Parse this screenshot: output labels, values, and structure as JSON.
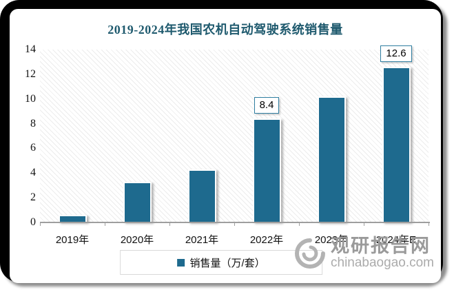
{
  "chart_data": {
    "type": "bar",
    "title": "2019-2024年我国农机自动驾驶系统销售量",
    "categories": [
      "2019年",
      "2020年",
      "2021年",
      "2022年",
      "2023年",
      "2024年E"
    ],
    "values": [
      0.6,
      3.3,
      4.3,
      8.4,
      10.2,
      12.6
    ],
    "bar_labels": [
      "",
      "",
      "",
      "8.4",
      "",
      "12.6"
    ],
    "yticks": [
      0,
      2,
      4,
      6,
      8,
      10,
      12,
      14
    ],
    "ylim": [
      0,
      14
    ],
    "xlabel": "",
    "ylabel": "",
    "grid": false,
    "legend_position": "bottom",
    "legend": [
      "销售量（万/套）"
    ],
    "colors": {
      "bar": "#1E6A8E",
      "title": "#1F5A6E",
      "axis": "#9E9E9E",
      "label_box_border": "#2E7DA0"
    }
  },
  "watermark": {
    "site_name": "观研报告网",
    "site_url": "chinabaogao.com",
    "logo": "swirl-logo"
  }
}
